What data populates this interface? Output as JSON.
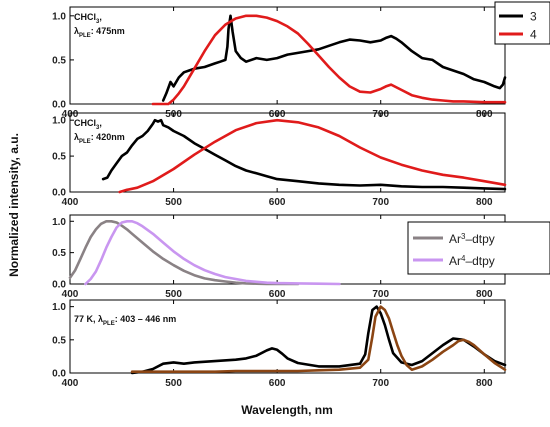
{
  "chart_data": {
    "type": "line",
    "xlabel": "Wavelength, nm",
    "ylabel": "Normalized intensity, a.u.",
    "xlim": [
      400,
      820
    ],
    "x_ticks": [
      400,
      500,
      600,
      700,
      800
    ],
    "ylim": [
      0,
      1.1
    ],
    "y_ticks": [
      "0.0",
      "0.5",
      "1.0"
    ],
    "colors": {
      "black": "#000000",
      "red": "#e01b1b",
      "gray": "#8a8285",
      "violet": "#c996f0",
      "brown": "#8b4513"
    },
    "panels": [
      {
        "annotation": [
          "CHCl",
          "3",
          ",",
          "λ",
          "PLE",
          ": 475nm"
        ],
        "legend": [
          "3",
          "4"
        ],
        "series": [
          {
            "name": "3",
            "color": "black",
            "x": [
              490,
              493,
              497,
              500,
              505,
              510,
              515,
              520,
              530,
              540,
              545,
              550,
              552,
              553,
              555,
              557,
              560,
              565,
              570,
              580,
              590,
              600,
              610,
              620,
              630,
              640,
              650,
              660,
              670,
              680,
              690,
              700,
              705,
              710,
              715,
              720,
              730,
              740,
              750,
              760,
              770,
              780,
              790,
              800,
              810,
              815,
              818,
              820
            ],
            "y": [
              0.04,
              0.12,
              0.25,
              0.2,
              0.3,
              0.36,
              0.38,
              0.4,
              0.42,
              0.46,
              0.48,
              0.5,
              0.65,
              0.85,
              1.0,
              0.82,
              0.6,
              0.52,
              0.48,
              0.52,
              0.5,
              0.52,
              0.56,
              0.58,
              0.6,
              0.62,
              0.66,
              0.7,
              0.73,
              0.72,
              0.7,
              0.72,
              0.75,
              0.77,
              0.74,
              0.7,
              0.6,
              0.52,
              0.5,
              0.42,
              0.38,
              0.34,
              0.28,
              0.25,
              0.2,
              0.18,
              0.22,
              0.3
            ]
          },
          {
            "name": "4",
            "color": "red",
            "x": [
              480,
              485,
              490,
              495,
              500,
              505,
              510,
              520,
              530,
              540,
              550,
              560,
              570,
              580,
              590,
              600,
              610,
              620,
              630,
              640,
              650,
              660,
              670,
              680,
              690,
              700,
              705,
              710,
              720,
              730,
              740,
              750,
              760,
              770,
              780,
              800,
              820
            ],
            "y": [
              0,
              0,
              0,
              0,
              0.05,
              0.12,
              0.2,
              0.4,
              0.6,
              0.78,
              0.9,
              0.97,
              1.0,
              1.0,
              0.98,
              0.94,
              0.88,
              0.8,
              0.68,
              0.55,
              0.42,
              0.3,
              0.2,
              0.14,
              0.13,
              0.17,
              0.2,
              0.22,
              0.16,
              0.1,
              0.07,
              0.05,
              0.04,
              0.03,
              0.03,
              0.02,
              0.02
            ]
          }
        ]
      },
      {
        "annotation": [
          "CHCl",
          "3",
          ",",
          "λ",
          "PLE",
          ": 420nm"
        ],
        "series": [
          {
            "name": "3",
            "color": "black",
            "x": [
              432,
              436,
              440,
              445,
              450,
              455,
              460,
              465,
              470,
              475,
              480,
              482,
              485,
              488,
              490,
              495,
              500,
              510,
              520,
              530,
              540,
              550,
              560,
              570,
              580,
              590,
              600,
              620,
              640,
              660,
              680,
              700,
              720,
              740,
              760,
              780,
              800,
              820
            ],
            "y": [
              0.18,
              0.2,
              0.3,
              0.4,
              0.5,
              0.55,
              0.65,
              0.74,
              0.78,
              0.85,
              0.95,
              1.0,
              0.98,
              1.0,
              0.93,
              0.9,
              0.85,
              0.78,
              0.68,
              0.6,
              0.52,
              0.44,
              0.36,
              0.3,
              0.26,
              0.22,
              0.18,
              0.15,
              0.12,
              0.1,
              0.09,
              0.1,
              0.08,
              0.07,
              0.07,
              0.06,
              0.05,
              0.04
            ]
          },
          {
            "name": "4",
            "color": "red",
            "x": [
              448,
              455,
              465,
              480,
              500,
              520,
              540,
              560,
              580,
              600,
              620,
              640,
              660,
              680,
              700,
              720,
              740,
              760,
              780,
              800,
              820
            ],
            "y": [
              0,
              0.03,
              0.06,
              0.15,
              0.32,
              0.52,
              0.7,
              0.86,
              0.96,
              1.0,
              0.97,
              0.9,
              0.78,
              0.62,
              0.48,
              0.38,
              0.3,
              0.24,
              0.2,
              0.15,
              0.1
            ]
          }
        ]
      },
      {
        "legend": [
          "Ar",
          "3",
          "–dtpy",
          "Ar",
          "4",
          "–dtpy"
        ],
        "series": [
          {
            "name": "Ar3–dtpy",
            "color": "gray",
            "x": [
              400,
              405,
              410,
              415,
              420,
              425,
              430,
              435,
              440,
              445,
              450,
              455,
              460,
              470,
              480,
              490,
              500,
              510,
              520,
              530,
              540,
              550,
              560,
              570,
              580,
              590,
              600,
              620
            ],
            "y": [
              0.1,
              0.22,
              0.4,
              0.58,
              0.75,
              0.87,
              0.96,
              1.0,
              1.0,
              0.98,
              0.93,
              0.87,
              0.8,
              0.66,
              0.52,
              0.4,
              0.3,
              0.21,
              0.14,
              0.09,
              0.06,
              0.04,
              0.02,
              0.01,
              0.005,
              0,
              0,
              0
            ]
          },
          {
            "name": "Ar4–dtpy",
            "color": "violet",
            "x": [
              415,
              420,
              425,
              430,
              435,
              440,
              445,
              450,
              455,
              460,
              465,
              470,
              480,
              490,
              500,
              510,
              520,
              530,
              540,
              550,
              560,
              570,
              580,
              590,
              600,
              620,
              640,
              660
            ],
            "y": [
              0,
              0.08,
              0.2,
              0.38,
              0.58,
              0.75,
              0.9,
              0.98,
              1.0,
              1.0,
              0.97,
              0.92,
              0.8,
              0.66,
              0.52,
              0.4,
              0.3,
              0.22,
              0.16,
              0.11,
              0.08,
              0.05,
              0.035,
              0.02,
              0.015,
              0.01,
              0.005,
              0
            ]
          }
        ]
      },
      {
        "annotation": [
          "77 K, λ",
          "PLE",
          ": 403 – 446 nm"
        ],
        "series": [
          {
            "name": "Ar3–dtpy",
            "color": "black",
            "x": [
              460,
              470,
              480,
              490,
              500,
              510,
              520,
              540,
              560,
              570,
              580,
              590,
              595,
              600,
              605,
              610,
              620,
              640,
              660,
              680,
              685,
              688,
              692,
              696,
              700,
              704,
              708,
              712,
              720,
              730,
              740,
              750,
              760,
              770,
              780,
              790,
              800,
              810,
              820
            ],
            "y": [
              0,
              0.02,
              0.06,
              0.14,
              0.16,
              0.14,
              0.16,
              0.18,
              0.2,
              0.22,
              0.26,
              0.34,
              0.37,
              0.35,
              0.29,
              0.22,
              0.15,
              0.1,
              0.1,
              0.14,
              0.28,
              0.6,
              0.95,
              1.0,
              0.9,
              0.72,
              0.5,
              0.3,
              0.16,
              0.12,
              0.18,
              0.3,
              0.42,
              0.52,
              0.5,
              0.4,
              0.28,
              0.18,
              0.12
            ]
          },
          {
            "name": "Ar4–dtpy",
            "color": "brown",
            "x": [
              460,
              480,
              500,
              520,
              540,
              560,
              580,
              600,
              620,
              640,
              660,
              680,
              688,
              692,
              695,
              700,
              704,
              708,
              712,
              716,
              720,
              725,
              730,
              740,
              750,
              760,
              770,
              775,
              780,
              785,
              790,
              800,
              810,
              820
            ],
            "y": [
              0.02,
              0.02,
              0.02,
              0.02,
              0.02,
              0.03,
              0.03,
              0.03,
              0.03,
              0.04,
              0.05,
              0.08,
              0.2,
              0.55,
              0.85,
              1.0,
              0.95,
              0.82,
              0.62,
              0.42,
              0.26,
              0.12,
              0.05,
              0.1,
              0.2,
              0.32,
              0.42,
              0.48,
              0.5,
              0.47,
              0.42,
              0.28,
              0.15,
              0.05
            ]
          }
        ]
      }
    ]
  }
}
